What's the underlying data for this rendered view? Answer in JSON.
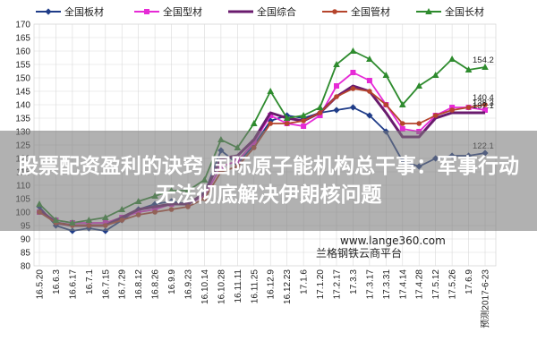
{
  "chart_data": {
    "type": "line",
    "title": "",
    "xlabel": "",
    "ylabel": "",
    "ylim": [
      80,
      170
    ],
    "yticks": [
      80,
      85,
      90,
      95,
      100,
      105,
      110,
      115,
      120,
      125,
      130,
      135,
      140,
      145,
      150,
      155,
      160,
      165,
      170
    ],
    "x_ticks": [
      "16.5.20",
      "16.6.3",
      "16.6.17",
      "16.7.1",
      "16.7.15",
      "16.7.29",
      "16.8.12",
      "16.8.26",
      "16.9.9",
      "16.9.23",
      "16.10.14",
      "16.10.28",
      "16.11.11",
      "16.11.25",
      "16.12.9",
      "16.12.23",
      "17.1.6",
      "17.1.20",
      "17.2.17",
      "17.3.3",
      "17.3.17",
      "17.3.31",
      "17.4.14",
      "17.4.28",
      "17.5.12",
      "17.5.26",
      "17.6.9",
      "预测2017-6-23"
    ],
    "grid": true,
    "legend_position": "top",
    "series": [
      {
        "name": "全国板材",
        "color": "#1f3c88",
        "marker": "diamond",
        "values": [
          102,
          95,
          93,
          94,
          93,
          97,
          101,
          103,
          104,
          103,
          107,
          123,
          118,
          125,
          134,
          136,
          135,
          137,
          138,
          139,
          136,
          130,
          119,
          117,
          120,
          121,
          121,
          122
        ],
        "end_label": "122.1"
      },
      {
        "name": "全国型材",
        "color": "#e62ad6",
        "marker": "square",
        "values": [
          100,
          97,
          96,
          96,
          96,
          98,
          100,
          101,
          103,
          103,
          106,
          117,
          119,
          126,
          136,
          133,
          132,
          136,
          147,
          152,
          149,
          140,
          131,
          130,
          136,
          139,
          139,
          138
        ],
        "end_label": "138.3"
      },
      {
        "name": "全国综合",
        "color": "#6a1b6e",
        "marker": "none",
        "values": [
          101,
          96,
          95,
          95,
          95,
          98,
          101,
          102,
          103,
          103,
          107,
          120,
          121,
          127,
          137,
          135,
          134,
          137,
          143,
          147,
          145,
          137,
          128,
          128,
          135,
          137,
          137,
          137
        ],
        "end_label": "137.1"
      },
      {
        "name": "全国管材",
        "color": "#b5442c",
        "marker": "circle",
        "values": [
          100,
          96,
          95,
          95,
          95,
          97,
          99,
          100,
          101,
          102,
          105,
          115,
          117,
          124,
          133,
          133,
          134,
          137,
          143,
          146,
          145,
          140,
          133,
          133,
          136,
          138,
          139,
          140
        ],
        "end_label": "140.4"
      },
      {
        "name": "全国长材",
        "color": "#2e8b2e",
        "marker": "triangle",
        "values": [
          103,
          97,
          96,
          97,
          98,
          101,
          104,
          106,
          108,
          108,
          112,
          127,
          124,
          133,
          145,
          135,
          136,
          139,
          155,
          160,
          157,
          151,
          140,
          147,
          151,
          157,
          153,
          154
        ],
        "end_label": "154.2"
      }
    ]
  },
  "overlay": {
    "banner_text": "股票配资盈利的诀窍 国际原子能机构总干事：军事行动无法彻底解决伊朗核问题",
    "watermark_url": "www.lange360.com",
    "watermark_name": "兰格钢铁云商平台"
  }
}
